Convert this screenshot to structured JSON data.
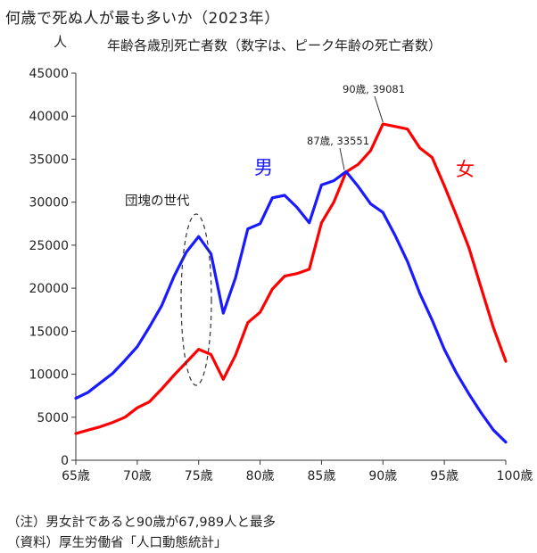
{
  "title": "何歳で死ぬ人が最も多いか（2023年）",
  "notes": [
    "（注）男女計であると90歳が67,989人と最多",
    "（資料）厚生労働省「人口動態統計」"
  ],
  "chart_data": {
    "type": "line",
    "title": "年齢各歳別死亡者数（数字は、ピーク年齢の死亡者数）",
    "ylabel": "人",
    "xlim": [
      65,
      100
    ],
    "ylim": [
      0,
      45000
    ],
    "x_ticks": [
      "65歳",
      "70歳",
      "75歳",
      "80歳",
      "85歳",
      "90歳",
      "95歳",
      "100歳"
    ],
    "y_ticks": [
      "0",
      "5000",
      "10000",
      "15000",
      "20000",
      "25000",
      "30000",
      "35000",
      "40000",
      "45000"
    ],
    "grid": false,
    "x": [
      65,
      66,
      67,
      68,
      69,
      70,
      71,
      72,
      73,
      74,
      75,
      76,
      77,
      78,
      79,
      80,
      81,
      82,
      83,
      84,
      85,
      86,
      87,
      88,
      89,
      90,
      91,
      92,
      93,
      94,
      95,
      96,
      97,
      98,
      99,
      100
    ],
    "series": [
      {
        "name": "男",
        "color": "#1a1aff",
        "values": [
          7200,
          7900,
          9000,
          10100,
          11600,
          13200,
          15500,
          18000,
          21400,
          24200,
          26000,
          24000,
          17100,
          21200,
          26900,
          27500,
          30500,
          30800,
          29400,
          27600,
          32000,
          32500,
          33551,
          31800,
          29800,
          28800,
          26100,
          23100,
          19400,
          16300,
          12900,
          10100,
          7700,
          5500,
          3500,
          2100
        ]
      },
      {
        "name": "女",
        "color": "#ff0000",
        "values": [
          3100,
          3500,
          3900,
          4400,
          5000,
          6100,
          6800,
          8300,
          9900,
          11400,
          12900,
          12300,
          9400,
          12200,
          16000,
          17200,
          19900,
          21400,
          21700,
          22200,
          27600,
          30000,
          33500,
          34400,
          36000,
          39081,
          38800,
          38500,
          36300,
          35200,
          31900,
          28400,
          24700,
          20000,
          15400,
          11500
        ]
      }
    ],
    "annotations": [
      {
        "text": "男",
        "color": "#1a1aff"
      },
      {
        "text": "女",
        "color": "#ff0000"
      },
      {
        "text": "団塊の世代"
      },
      {
        "text": "87歳, 33551"
      },
      {
        "text": "90歳, 39081"
      }
    ]
  }
}
